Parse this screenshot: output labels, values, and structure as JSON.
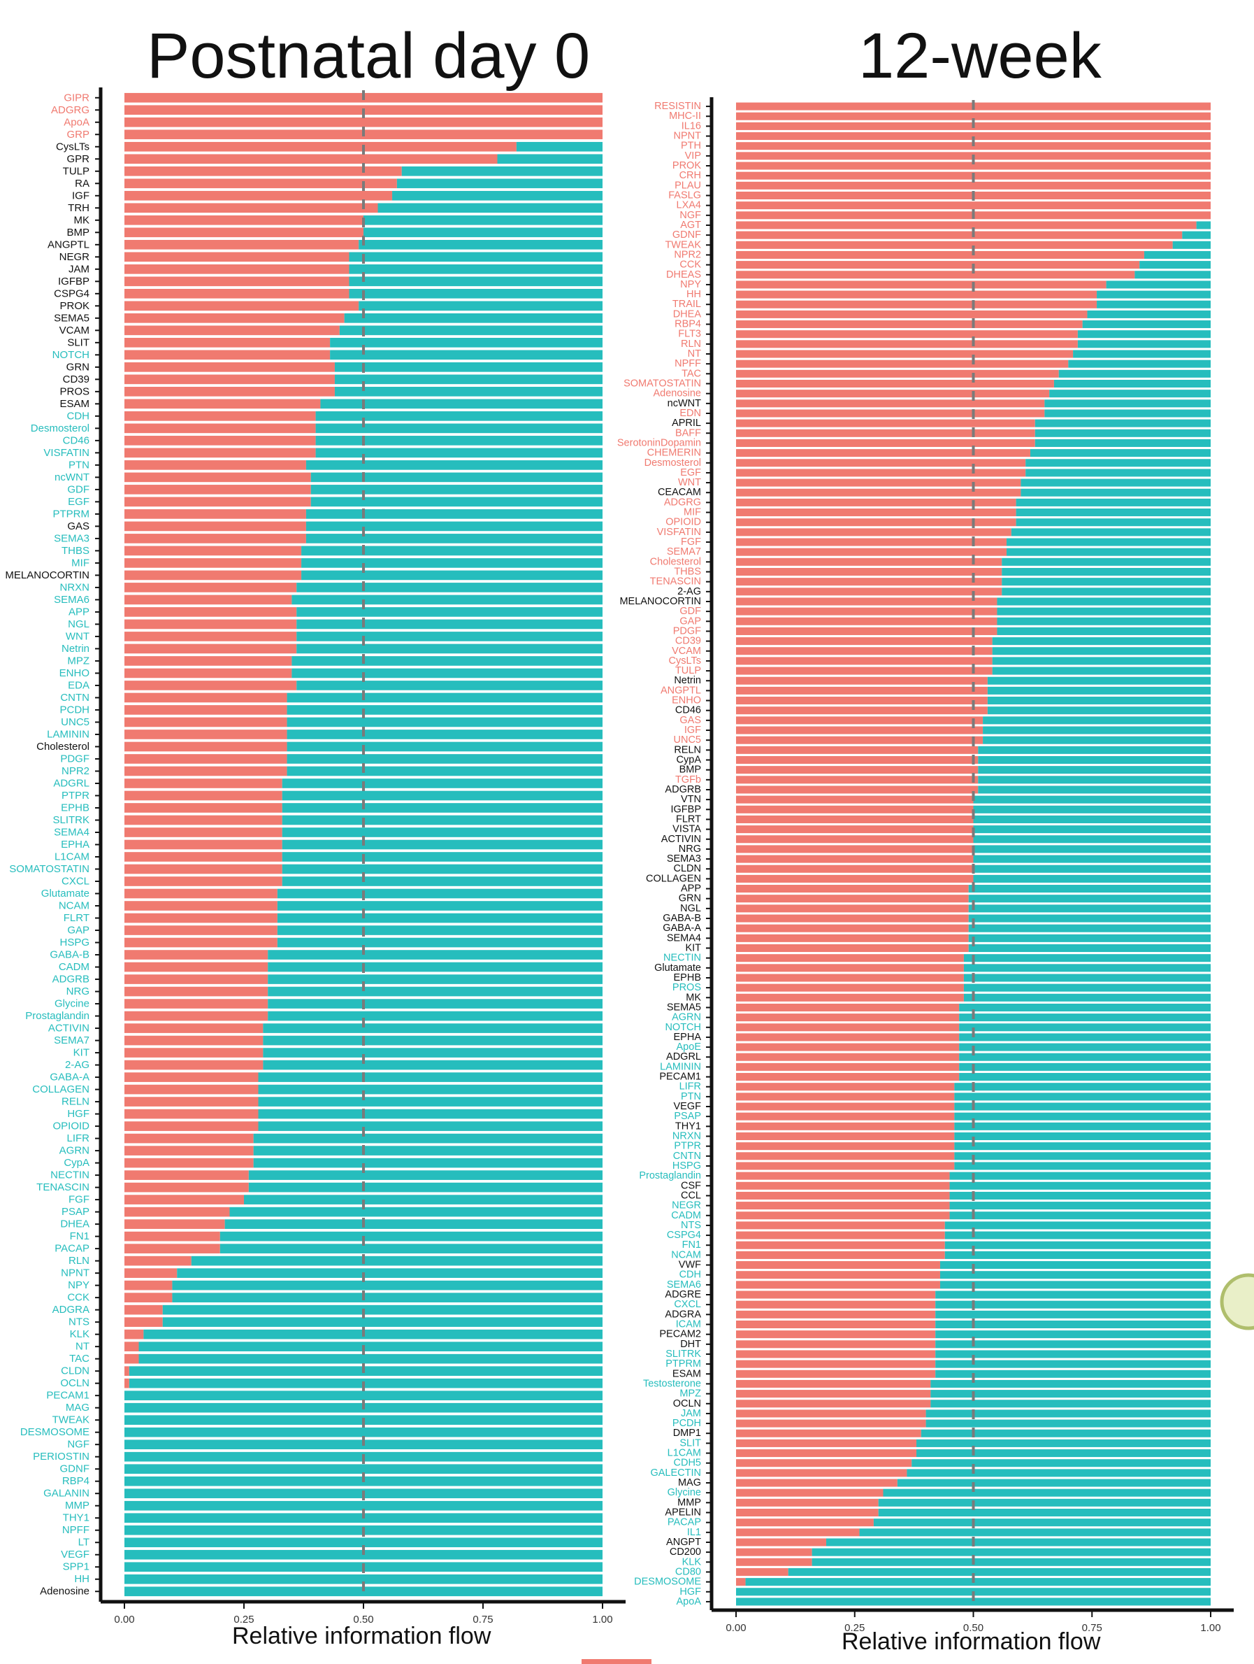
{
  "colors": {
    "red": "#F07A70",
    "teal": "#26BDBD",
    "pink": "#F07A70",
    "cyan": "#26BDBD",
    "black": "#111111"
  },
  "chart_data": [
    {
      "type": "bar",
      "orientation": "horizontal-stacked",
      "title": "Postnatal day 0",
      "xlabel": "Relative information flow",
      "xlim": [
        0,
        1
      ],
      "xticks": [
        "0.00",
        "0.25",
        "0.50",
        "0.75",
        "1.00"
      ],
      "reference_line": 0.5,
      "categories": [
        "GIPR",
        "ADGRG",
        "ApoA",
        "GRP",
        "CysLTs",
        "GPR",
        "TULP",
        "RA",
        "IGF",
        "TRH",
        "MK",
        "BMP",
        "ANGPTL",
        "NEGR",
        "JAM",
        "IGFBP",
        "CSPG4",
        "PROK",
        "SEMA5",
        "VCAM",
        "SLIT",
        "NOTCH",
        "GRN",
        "CD39",
        "PROS",
        "ESAM",
        "CDH",
        "Desmosterol",
        "CD46",
        "VISFATIN",
        "PTN",
        "ncWNT",
        "GDF",
        "EGF",
        "PTPRM",
        "GAS",
        "SEMA3",
        "THBS",
        "MIF",
        "MELANOCORTIN",
        "NRXN",
        "SEMA6",
        "APP",
        "NGL",
        "WNT",
        "Netrin",
        "MPZ",
        "ENHO",
        "EDA",
        "CNTN",
        "PCDH",
        "UNC5",
        "LAMININ",
        "Cholesterol",
        "PDGF",
        "NPR2",
        "ADGRL",
        "PTPR",
        "EPHB",
        "SLITRK",
        "SEMA4",
        "EPHA",
        "L1CAM",
        "SOMATOSTATIN",
        "CXCL",
        "Glutamate",
        "NCAM",
        "FLRT",
        "GAP",
        "HSPG",
        "GABA-B",
        "CADM",
        "ADGRB",
        "NRG",
        "Glycine",
        "Prostaglandin",
        "ACTIVIN",
        "SEMA7",
        "KIT",
        "2-AG",
        "GABA-A",
        "COLLAGEN",
        "RELN",
        "HGF",
        "OPIOID",
        "LIFR",
        "AGRN",
        "CypA",
        "NECTIN",
        "TENASCIN",
        "FGF",
        "PSAP",
        "DHEA",
        "FN1",
        "PACAP",
        "RLN",
        "NPNT",
        "NPY",
        "CCK",
        "ADGRA",
        "NTS",
        "KLK",
        "NT",
        "TAC",
        "CLDN",
        "OCLN",
        "PECAM1",
        "MAG",
        "TWEAK",
        "DESMOSOME",
        "NGF",
        "PERIOSTIN",
        "GDNF",
        "RBP4",
        "GALANIN",
        "MMP",
        "THY1",
        "NPFF",
        "LT",
        "VEGF",
        "SPP1",
        "HH",
        "Adenosine"
      ],
      "label_colors": [
        "pink",
        "pink",
        "pink",
        "pink",
        "black",
        "black",
        "black",
        "black",
        "black",
        "black",
        "black",
        "black",
        "black",
        "black",
        "black",
        "black",
        "black",
        "black",
        "black",
        "black",
        "black",
        "cyan",
        "black",
        "black",
        "black",
        "black",
        "cyan",
        "cyan",
        "cyan",
        "cyan",
        "cyan",
        "cyan",
        "cyan",
        "cyan",
        "cyan",
        "black",
        "cyan",
        "cyan",
        "cyan",
        "black",
        "cyan",
        "cyan",
        "cyan",
        "cyan",
        "cyan",
        "cyan",
        "cyan",
        "cyan",
        "cyan",
        "cyan",
        "cyan",
        "cyan",
        "cyan",
        "black",
        "cyan",
        "cyan",
        "cyan",
        "cyan",
        "cyan",
        "cyan",
        "cyan",
        "cyan",
        "cyan",
        "cyan",
        "cyan",
        "cyan",
        "cyan",
        "cyan",
        "cyan",
        "cyan",
        "cyan",
        "cyan",
        "cyan",
        "cyan",
        "cyan",
        "cyan",
        "cyan",
        "cyan",
        "cyan",
        "cyan",
        "cyan",
        "cyan",
        "cyan",
        "cyan",
        "cyan",
        "cyan",
        "cyan",
        "cyan",
        "cyan",
        "cyan",
        "cyan",
        "cyan",
        "cyan",
        "cyan",
        "cyan",
        "cyan",
        "cyan",
        "cyan",
        "cyan",
        "cyan",
        "cyan",
        "cyan",
        "cyan",
        "cyan",
        "cyan",
        "cyan",
        "cyan",
        "cyan",
        "cyan",
        "cyan",
        "cyan",
        "cyan",
        "cyan",
        "cyan",
        "cyan",
        "cyan",
        "cyan",
        "cyan",
        "cyan",
        "cyan",
        "cyan",
        "cyan"
      ],
      "red_values": [
        1,
        1,
        1,
        1,
        0.82,
        0.78,
        0.58,
        0.57,
        0.56,
        0.53,
        0.5,
        0.5,
        0.49,
        0.47,
        0.47,
        0.47,
        0.47,
        0.49,
        0.46,
        0.45,
        0.43,
        0.43,
        0.44,
        0.44,
        0.44,
        0.41,
        0.4,
        0.4,
        0.4,
        0.4,
        0.38,
        0.39,
        0.39,
        0.39,
        0.38,
        0.38,
        0.38,
        0.37,
        0.37,
        0.37,
        0.36,
        0.35,
        0.36,
        0.36,
        0.36,
        0.36,
        0.35,
        0.35,
        0.36,
        0.34,
        0.34,
        0.34,
        0.34,
        0.34,
        0.34,
        0.34,
        0.33,
        0.33,
        0.33,
        0.33,
        0.33,
        0.33,
        0.33,
        0.33,
        0.33,
        0.32,
        0.32,
        0.32,
        0.32,
        0.32,
        0.3,
        0.3,
        0.3,
        0.3,
        0.3,
        0.3,
        0.29,
        0.29,
        0.29,
        0.29,
        0.28,
        0.28,
        0.28,
        0.28,
        0.28,
        0.27,
        0.27,
        0.27,
        0.26,
        0.26,
        0.25,
        0.22,
        0.21,
        0.2,
        0.2,
        0.14,
        0.11,
        0.1,
        0.1,
        0.08,
        0.08,
        0.04,
        0.03,
        0.03,
        0.01,
        0.01,
        0,
        0,
        0,
        0,
        0,
        0,
        0,
        0,
        0,
        0,
        0,
        0,
        0,
        0,
        0,
        0,
        0
      ]
    },
    {
      "type": "bar",
      "orientation": "horizontal-stacked",
      "title": "12-week",
      "xlabel": "Relative information flow",
      "xlim": [
        0,
        1
      ],
      "xticks": [
        "0.00",
        "0.25",
        "0.50",
        "0.75",
        "1.00"
      ],
      "reference_line": 0.5,
      "categories": [
        "RESISTIN",
        "MHC-II",
        "IL16",
        "NPNT",
        "PTH",
        "VIP",
        "PROK",
        "CRH",
        "PLAU",
        "FASLG",
        "LXA4",
        "NGF",
        "AGT",
        "GDNF",
        "TWEAK",
        "NPR2",
        "CCK",
        "DHEAS",
        "NPY",
        "HH",
        "TRAIL",
        "DHEA",
        "RBP4",
        "FLT3",
        "RLN",
        "NT",
        "NPFF",
        "TAC",
        "SOMATOSTATIN",
        "Adenosine",
        "ncWNT",
        "EDN",
        "APRIL",
        "BAFF",
        "SerotoninDopamin",
        "CHEMERIN",
        "Desmosterol",
        "EGF",
        "WNT",
        "CEACAM",
        "ADGRG",
        "MIF",
        "OPIOID",
        "VISFATIN",
        "FGF",
        "SEMA7",
        "Cholesterol",
        "THBS",
        "TENASCIN",
        "2-AG",
        "MELANOCORTIN",
        "GDF",
        "GAP",
        "PDGF",
        "CD39",
        "VCAM",
        "CysLTs",
        "TULP",
        "Netrin",
        "ANGPTL",
        "ENHO",
        "CD46",
        "GAS",
        "IGF",
        "UNC5",
        "RELN",
        "CypA",
        "BMP",
        "TGFb",
        "ADGRB",
        "VTN",
        "IGFBP",
        "FLRT",
        "VISTA",
        "ACTIVIN",
        "NRG",
        "SEMA3",
        "CLDN",
        "COLLAGEN",
        "APP",
        "GRN",
        "NGL",
        "GABA-B",
        "GABA-A",
        "SEMA4",
        "KIT",
        "NECTIN",
        "Glutamate",
        "EPHB",
        "PROS",
        "MK",
        "SEMA5",
        "AGRN",
        "NOTCH",
        "EPHA",
        "ApoE",
        "ADGRL",
        "LAMININ",
        "PECAM1",
        "LIFR",
        "PTN",
        "VEGF",
        "PSAP",
        "THY1",
        "NRXN",
        "PTPR",
        "CNTN",
        "HSPG",
        "Prostaglandin",
        "CSF",
        "CCL",
        "NEGR",
        "CADM",
        "NTS",
        "CSPG4",
        "FN1",
        "NCAM",
        "VWF",
        "CDH",
        "SEMA6",
        "ADGRE",
        "CXCL",
        "ADGRA",
        "ICAM",
        "PECAM2",
        "DHT",
        "SLITRK",
        "PTPRM",
        "ESAM",
        "Testosterone",
        "MPZ",
        "OCLN",
        "JAM",
        "PCDH",
        "DMP1",
        "SLIT",
        "L1CAM",
        "CDH5",
        "GALECTIN",
        "MAG",
        "Glycine",
        "MMP",
        "APELIN",
        "PACAP",
        "IL1",
        "ANGPT",
        "CD200",
        "KLK",
        "CD80",
        "DESMOSOME",
        "HGF",
        "ApoA"
      ],
      "label_colors": [
        "pink",
        "pink",
        "pink",
        "pink",
        "pink",
        "pink",
        "pink",
        "pink",
        "pink",
        "pink",
        "pink",
        "pink",
        "pink",
        "pink",
        "pink",
        "pink",
        "pink",
        "pink",
        "pink",
        "pink",
        "pink",
        "pink",
        "pink",
        "pink",
        "pink",
        "pink",
        "pink",
        "pink",
        "pink",
        "pink",
        "black",
        "pink",
        "black",
        "pink",
        "pink",
        "pink",
        "pink",
        "pink",
        "pink",
        "black",
        "pink",
        "pink",
        "pink",
        "pink",
        "pink",
        "pink",
        "pink",
        "pink",
        "pink",
        "black",
        "black",
        "pink",
        "pink",
        "pink",
        "pink",
        "pink",
        "pink",
        "pink",
        "black",
        "pink",
        "pink",
        "black",
        "pink",
        "pink",
        "pink",
        "black",
        "black",
        "black",
        "pink",
        "black",
        "black",
        "black",
        "black",
        "black",
        "black",
        "black",
        "black",
        "black",
        "black",
        "black",
        "black",
        "black",
        "black",
        "black",
        "black",
        "black",
        "cyan",
        "black",
        "black",
        "cyan",
        "black",
        "black",
        "cyan",
        "cyan",
        "black",
        "cyan",
        "black",
        "cyan",
        "black",
        "cyan",
        "cyan",
        "black",
        "cyan",
        "black",
        "cyan",
        "cyan",
        "cyan",
        "cyan",
        "cyan",
        "black",
        "black",
        "cyan",
        "cyan",
        "cyan",
        "cyan",
        "cyan",
        "cyan",
        "black",
        "cyan",
        "cyan",
        "black",
        "cyan",
        "black",
        "cyan",
        "black",
        "black",
        "cyan",
        "cyan",
        "black",
        "cyan",
        "cyan",
        "black",
        "cyan",
        "cyan",
        "black",
        "cyan",
        "cyan",
        "cyan",
        "cyan",
        "black",
        "cyan",
        "black",
        "black",
        "cyan",
        "cyan",
        "black",
        "black",
        "cyan",
        "cyan",
        "cyan",
        "cyan",
        "cyan"
      ],
      "red_values": [
        1,
        1,
        1,
        1,
        1,
        1,
        1,
        1,
        1,
        1,
        1,
        1,
        0.97,
        0.94,
        0.92,
        0.86,
        0.85,
        0.84,
        0.78,
        0.76,
        0.76,
        0.74,
        0.73,
        0.72,
        0.72,
        0.71,
        0.7,
        0.68,
        0.67,
        0.66,
        0.65,
        0.65,
        0.63,
        0.63,
        0.63,
        0.62,
        0.61,
        0.61,
        0.6,
        0.6,
        0.59,
        0.59,
        0.59,
        0.58,
        0.57,
        0.57,
        0.56,
        0.56,
        0.56,
        0.56,
        0.55,
        0.55,
        0.55,
        0.55,
        0.54,
        0.54,
        0.54,
        0.54,
        0.53,
        0.53,
        0.53,
        0.53,
        0.52,
        0.52,
        0.52,
        0.51,
        0.51,
        0.51,
        0.51,
        0.51,
        0.5,
        0.5,
        0.5,
        0.5,
        0.5,
        0.5,
        0.5,
        0.5,
        0.5,
        0.49,
        0.49,
        0.49,
        0.49,
        0.49,
        0.49,
        0.49,
        0.48,
        0.48,
        0.48,
        0.48,
        0.48,
        0.47,
        0.47,
        0.47,
        0.47,
        0.47,
        0.47,
        0.47,
        0.47,
        0.46,
        0.46,
        0.46,
        0.46,
        0.46,
        0.46,
        0.46,
        0.46,
        0.46,
        0.45,
        0.45,
        0.45,
        0.45,
        0.45,
        0.44,
        0.44,
        0.44,
        0.44,
        0.43,
        0.43,
        0.43,
        0.42,
        0.42,
        0.42,
        0.42,
        0.42,
        0.42,
        0.42,
        0.42,
        0.42,
        0.41,
        0.41,
        0.41,
        0.4,
        0.4,
        0.39,
        0.38,
        0.38,
        0.37,
        0.36,
        0.34,
        0.31,
        0.3,
        0.3,
        0.29,
        0.26,
        0.19,
        0.16,
        0.16,
        0.11,
        0.02,
        0,
        0
      ]
    }
  ]
}
